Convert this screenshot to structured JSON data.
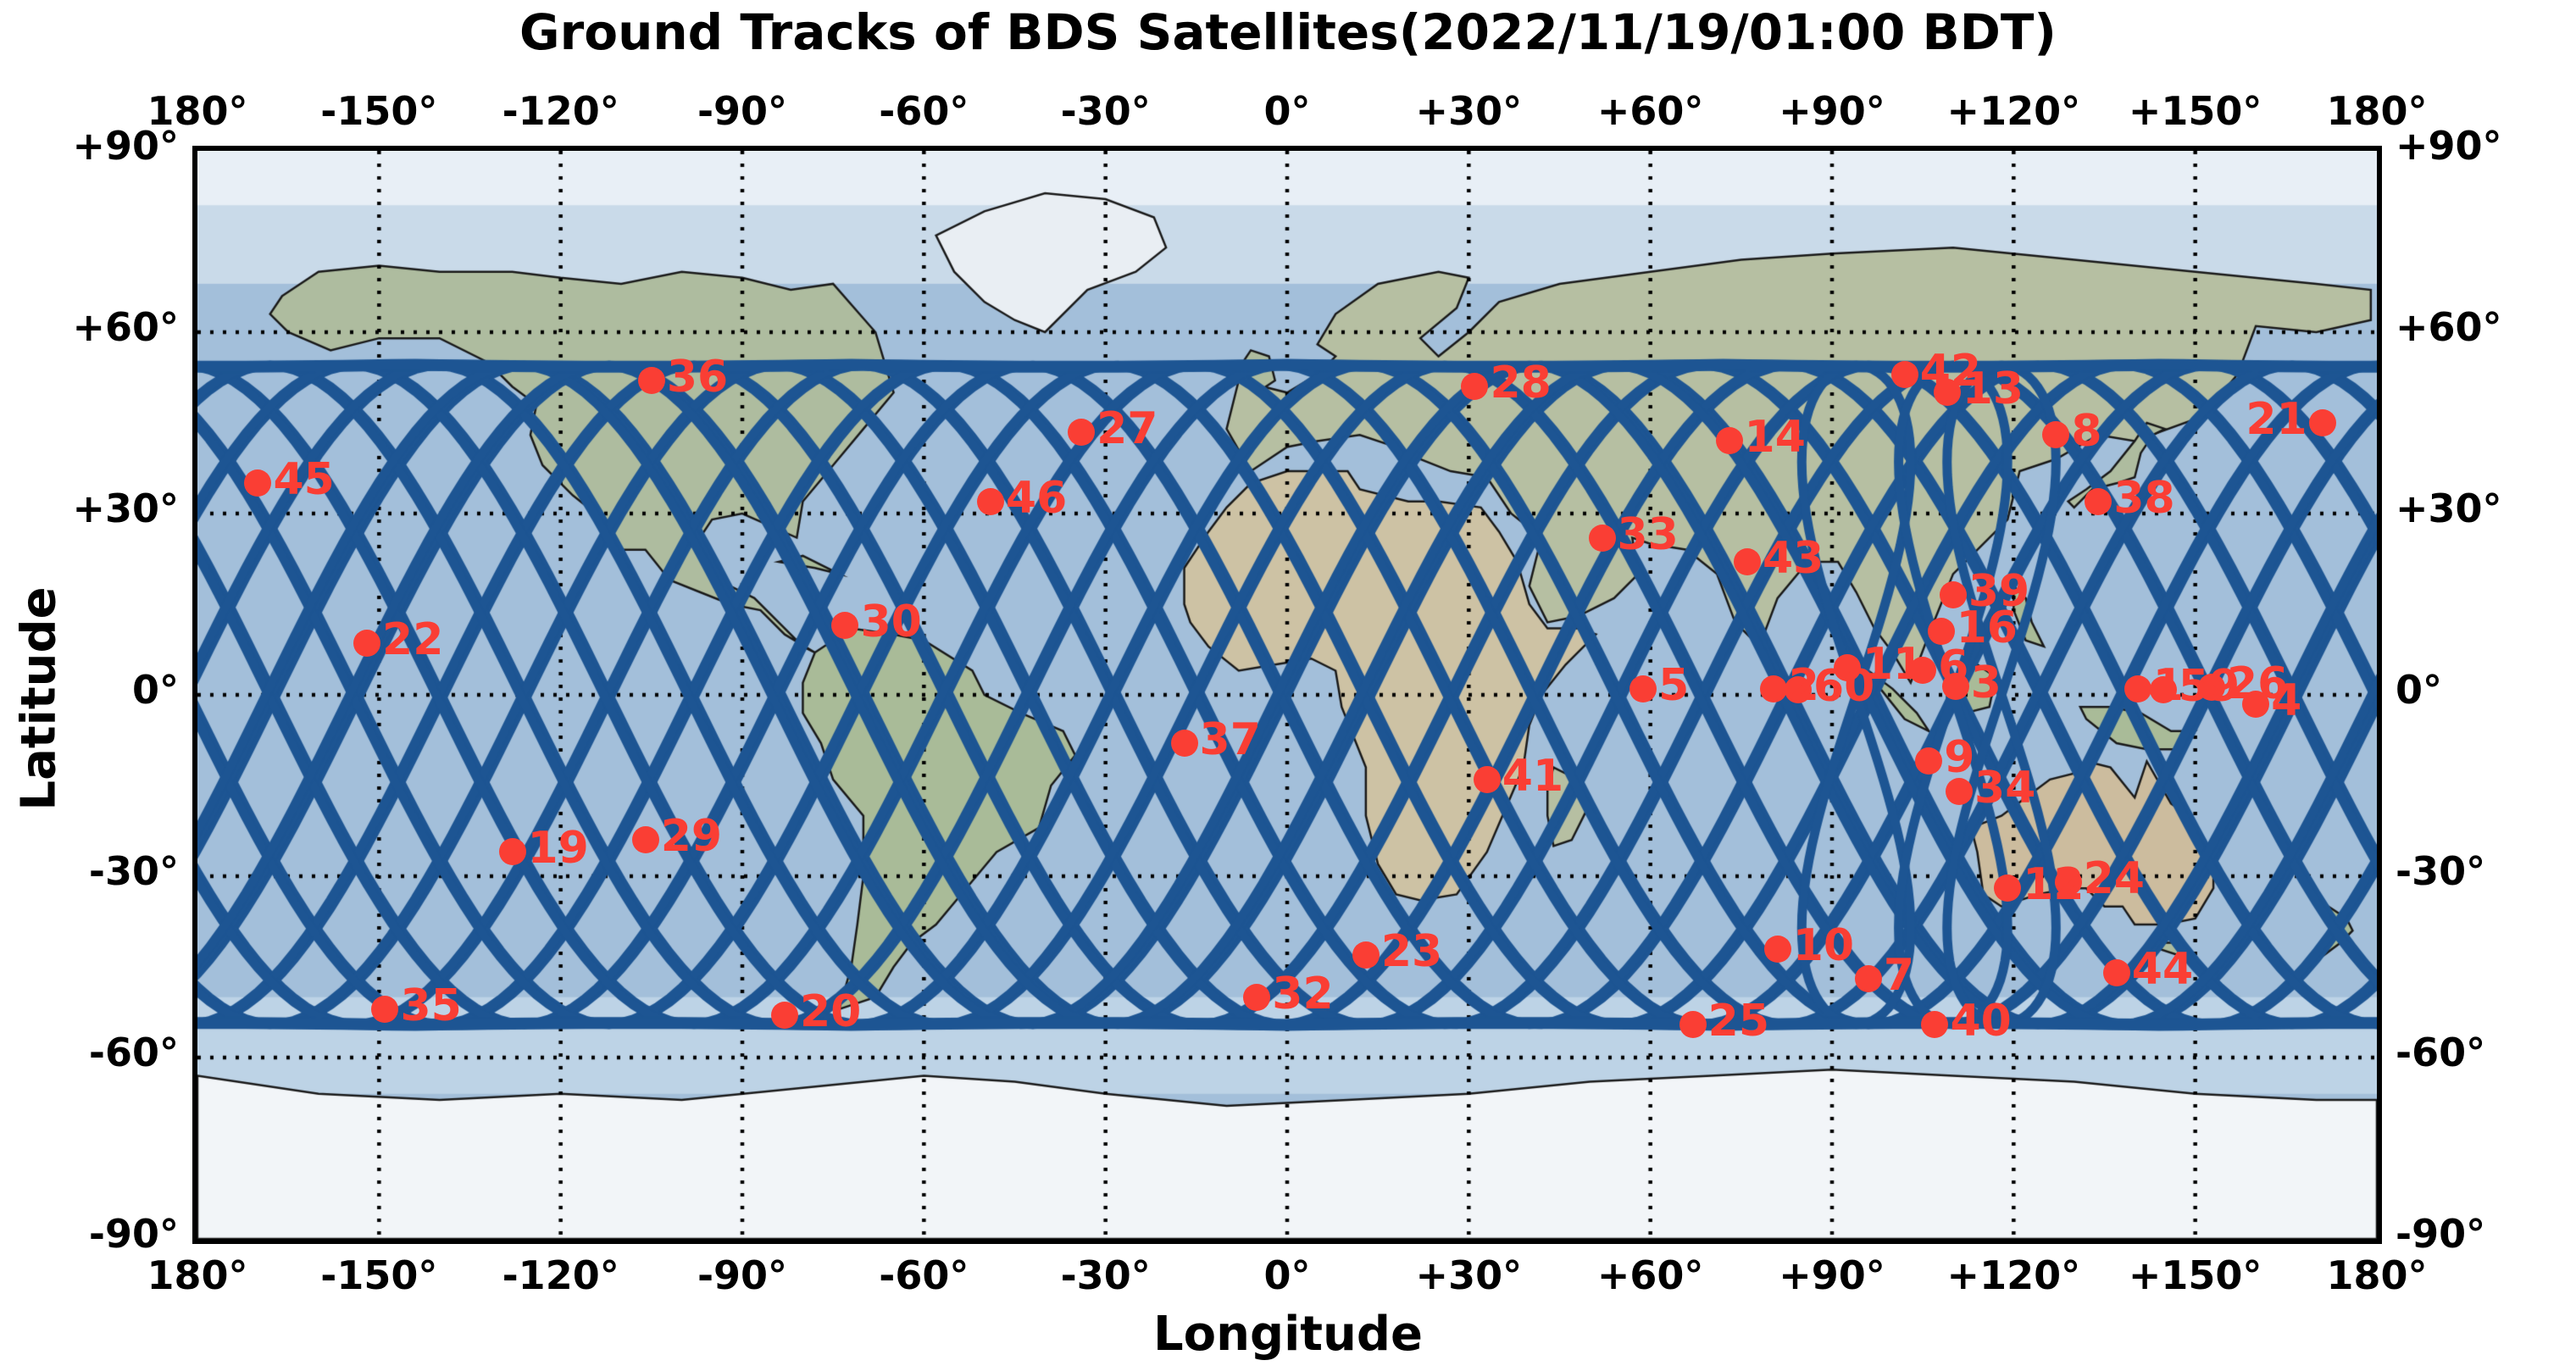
{
  "title": "Ground Tracks of BDS Satellites(2022/11/19/01:00 BDT)",
  "axes": {
    "x_label": "Longitude",
    "y_label": "Latitude",
    "x_ticks": [
      {
        "value": -180,
        "label": "180°"
      },
      {
        "value": -150,
        "label": "-150°"
      },
      {
        "value": -120,
        "label": "-120°"
      },
      {
        "value": -90,
        "label": "-90°"
      },
      {
        "value": -60,
        "label": "-60°"
      },
      {
        "value": -30,
        "label": "-30°"
      },
      {
        "value": 0,
        "label": "0°"
      },
      {
        "value": 30,
        "label": "+30°"
      },
      {
        "value": 60,
        "label": "+60°"
      },
      {
        "value": 90,
        "label": "+90°"
      },
      {
        "value": 120,
        "label": "+120°"
      },
      {
        "value": 150,
        "label": "+150°"
      },
      {
        "value": 180,
        "label": "180°"
      }
    ],
    "y_ticks": [
      {
        "value": 90,
        "label": "+90°"
      },
      {
        "value": 60,
        "label": "+60°"
      },
      {
        "value": 30,
        "label": "+30°"
      },
      {
        "value": 0,
        "label": "0°"
      },
      {
        "value": -30,
        "label": "-30°"
      },
      {
        "value": -60,
        "label": "-60°"
      },
      {
        "value": -90,
        "label": "-90°"
      }
    ]
  },
  "colors": {
    "track_blue": "#1d5593",
    "satellite_red": "#fa3e34",
    "ocean": "#a3bfda",
    "ocean_polar": "#c9dae9",
    "grid": "#000000",
    "text": "#000000"
  },
  "chart_data": {
    "type": "scatter",
    "title": "Ground Tracks of BDS Satellites(2022/11/19/01:00 BDT)",
    "xlabel": "Longitude",
    "ylabel": "Latitude",
    "xlim": [
      -180,
      180
    ],
    "ylim": [
      -90,
      90
    ],
    "grid": true,
    "grid_interval_deg": 30,
    "basemap": "shaded-relief world map",
    "tracks": {
      "description": "BDS MEO/IGSO ground tracks, dark blue sinusoids bounded at ±55° latitude",
      "amplitude": 54.5,
      "wavelength": 167,
      "count": 26,
      "width": 11,
      "envelope_lat": 54.6,
      "igso_centers": [
        94,
        110,
        118
      ],
      "igso_halfwidth": 9
    },
    "satellites": [
      {
        "id": "45",
        "lon": -170,
        "lat": 35
      },
      {
        "id": "36",
        "lon": -105,
        "lat": 52
      },
      {
        "id": "27",
        "lon": -34,
        "lat": 43.5
      },
      {
        "id": "46",
        "lon": -49,
        "lat": 32
      },
      {
        "id": "22",
        "lon": -152,
        "lat": 8.5
      },
      {
        "id": "30",
        "lon": -73,
        "lat": 11.5
      },
      {
        "id": "19",
        "lon": -128,
        "lat": -26
      },
      {
        "id": "29",
        "lon": -106,
        "lat": -24
      },
      {
        "id": "35",
        "lon": -149,
        "lat": -52
      },
      {
        "id": "20",
        "lon": -83,
        "lat": -53
      },
      {
        "id": "37",
        "lon": -17,
        "lat": -8
      },
      {
        "id": "32",
        "lon": -5,
        "lat": -50
      },
      {
        "id": "23",
        "lon": 13,
        "lat": -43
      },
      {
        "id": "41",
        "lon": 33,
        "lat": -14
      },
      {
        "id": "28",
        "lon": 31,
        "lat": 51
      },
      {
        "id": "33",
        "lon": 52,
        "lat": 26
      },
      {
        "id": "14",
        "lon": 73,
        "lat": 42
      },
      {
        "id": "43",
        "lon": 76,
        "lat": 22
      },
      {
        "id": "42",
        "lon": 102,
        "lat": 53
      },
      {
        "id": "13",
        "lon": 109,
        "lat": 50
      },
      {
        "id": "8",
        "lon": 127,
        "lat": 43
      },
      {
        "id": "38",
        "lon": 134,
        "lat": 32
      },
      {
        "id": "21",
        "lon": 171,
        "lat": 45,
        "side": "l"
      },
      {
        "id": "39",
        "lon": 110,
        "lat": 16.5
      },
      {
        "id": "16",
        "lon": 108,
        "lat": 10.5
      },
      {
        "id": "9",
        "lon": 106,
        "lat": -11
      },
      {
        "id": "34",
        "lon": 111,
        "lat": -16
      },
      {
        "id": "12",
        "lon": 119,
        "lat": -32
      },
      {
        "id": "24",
        "lon": 129,
        "lat": -31
      },
      {
        "id": "10",
        "lon": 81,
        "lat": -42
      },
      {
        "id": "7",
        "lon": 96,
        "lat": -47
      },
      {
        "id": "44",
        "lon": 137,
        "lat": -46
      },
      {
        "id": "25",
        "lon": 67,
        "lat": -54.5
      },
      {
        "id": "40",
        "lon": 107,
        "lat": -54.5
      },
      {
        "id": "5",
        "lon": 58.8,
        "lat": 1
      },
      {
        "id": "2",
        "lon": 80.3,
        "lat": 1
      },
      {
        "id": "60",
        "lon": 84.4,
        "lat": 0.8
      },
      {
        "id": "11",
        "lon": 92.5,
        "lat": 4.5
      },
      {
        "id": "6",
        "lon": 105,
        "lat": 4
      },
      {
        "id": "3",
        "lon": 110.4,
        "lat": 1.4
      },
      {
        "id": "1",
        "lon": 140.5,
        "lat": 1
      },
      {
        "id": "59",
        "lon": 144.7,
        "lat": 0.8
      },
      {
        "id": "26",
        "lon": 152.7,
        "lat": 1.2
      },
      {
        "id": "4",
        "lon": 160,
        "lat": -1.5
      }
    ]
  }
}
